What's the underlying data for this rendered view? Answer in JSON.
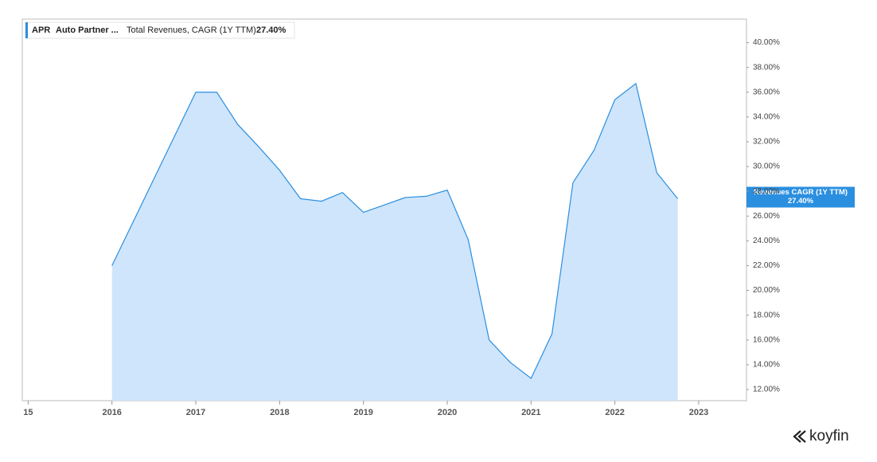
{
  "chart_data": {
    "type": "area",
    "legend": {
      "ticker": "APR",
      "name": "Auto Partner ...",
      "metric": "Total Revenues, CAGR (1Y TTM)",
      "value": "27.40%"
    },
    "tag": {
      "title": "Revenues CAGR (1Y TTM)",
      "value": "27.40%"
    },
    "brand": "koyfin",
    "x": [
      2016,
      2017,
      2017.25,
      2017.5,
      2017.75,
      2018,
      2018.25,
      2018.5,
      2018.75,
      2019,
      2019.25,
      2019.5,
      2019.75,
      2020,
      2020.25,
      2020.5,
      2020.75,
      2021,
      2021.25,
      2021.5,
      2021.75,
      2022,
      2022.25,
      2022.5,
      2022.75
    ],
    "series": [
      {
        "name": "Total Revenues, CAGR (1Y TTM)",
        "color": "#2b8fe0",
        "fill": "#cfe5fb",
        "values": [
          22.0,
          36.0,
          36.0,
          33.4,
          31.6,
          29.7,
          27.4,
          27.2,
          27.9,
          26.3,
          26.9,
          27.5,
          27.6,
          28.1,
          24.1,
          16.0,
          14.2,
          12.9,
          16.5,
          28.7,
          31.3,
          35.4,
          36.7,
          29.5,
          27.4
        ]
      }
    ],
    "xlim": [
      2014.93,
      2023.57
    ],
    "xticks": [
      {
        "value": 2015,
        "label": "15"
      },
      2016,
      2017,
      2018,
      2019,
      2020,
      2021,
      2022,
      2023
    ],
    "ylim": [
      11.1,
      41.9
    ],
    "yticks": [
      {
        "value": 12,
        "label": "12.00%"
      },
      {
        "value": 14,
        "label": "14.00%"
      },
      {
        "value": 16,
        "label": "16.00%"
      },
      {
        "value": 18,
        "label": "18.00%"
      },
      {
        "value": 20,
        "label": "20.00%"
      },
      {
        "value": 22,
        "label": "22.00%"
      },
      {
        "value": 24,
        "label": "24.00%"
      },
      {
        "value": 26,
        "label": "26.00%"
      },
      {
        "value": 28,
        "label": "28.00%"
      },
      {
        "value": 30,
        "label": "30.00%"
      },
      {
        "value": 32,
        "label": "32.00%"
      },
      {
        "value": 34,
        "label": "34.00%"
      },
      {
        "value": 36,
        "label": "36.00%"
      },
      {
        "value": 38,
        "label": "38.00%"
      },
      {
        "value": 40,
        "label": "40.00%"
      }
    ]
  }
}
